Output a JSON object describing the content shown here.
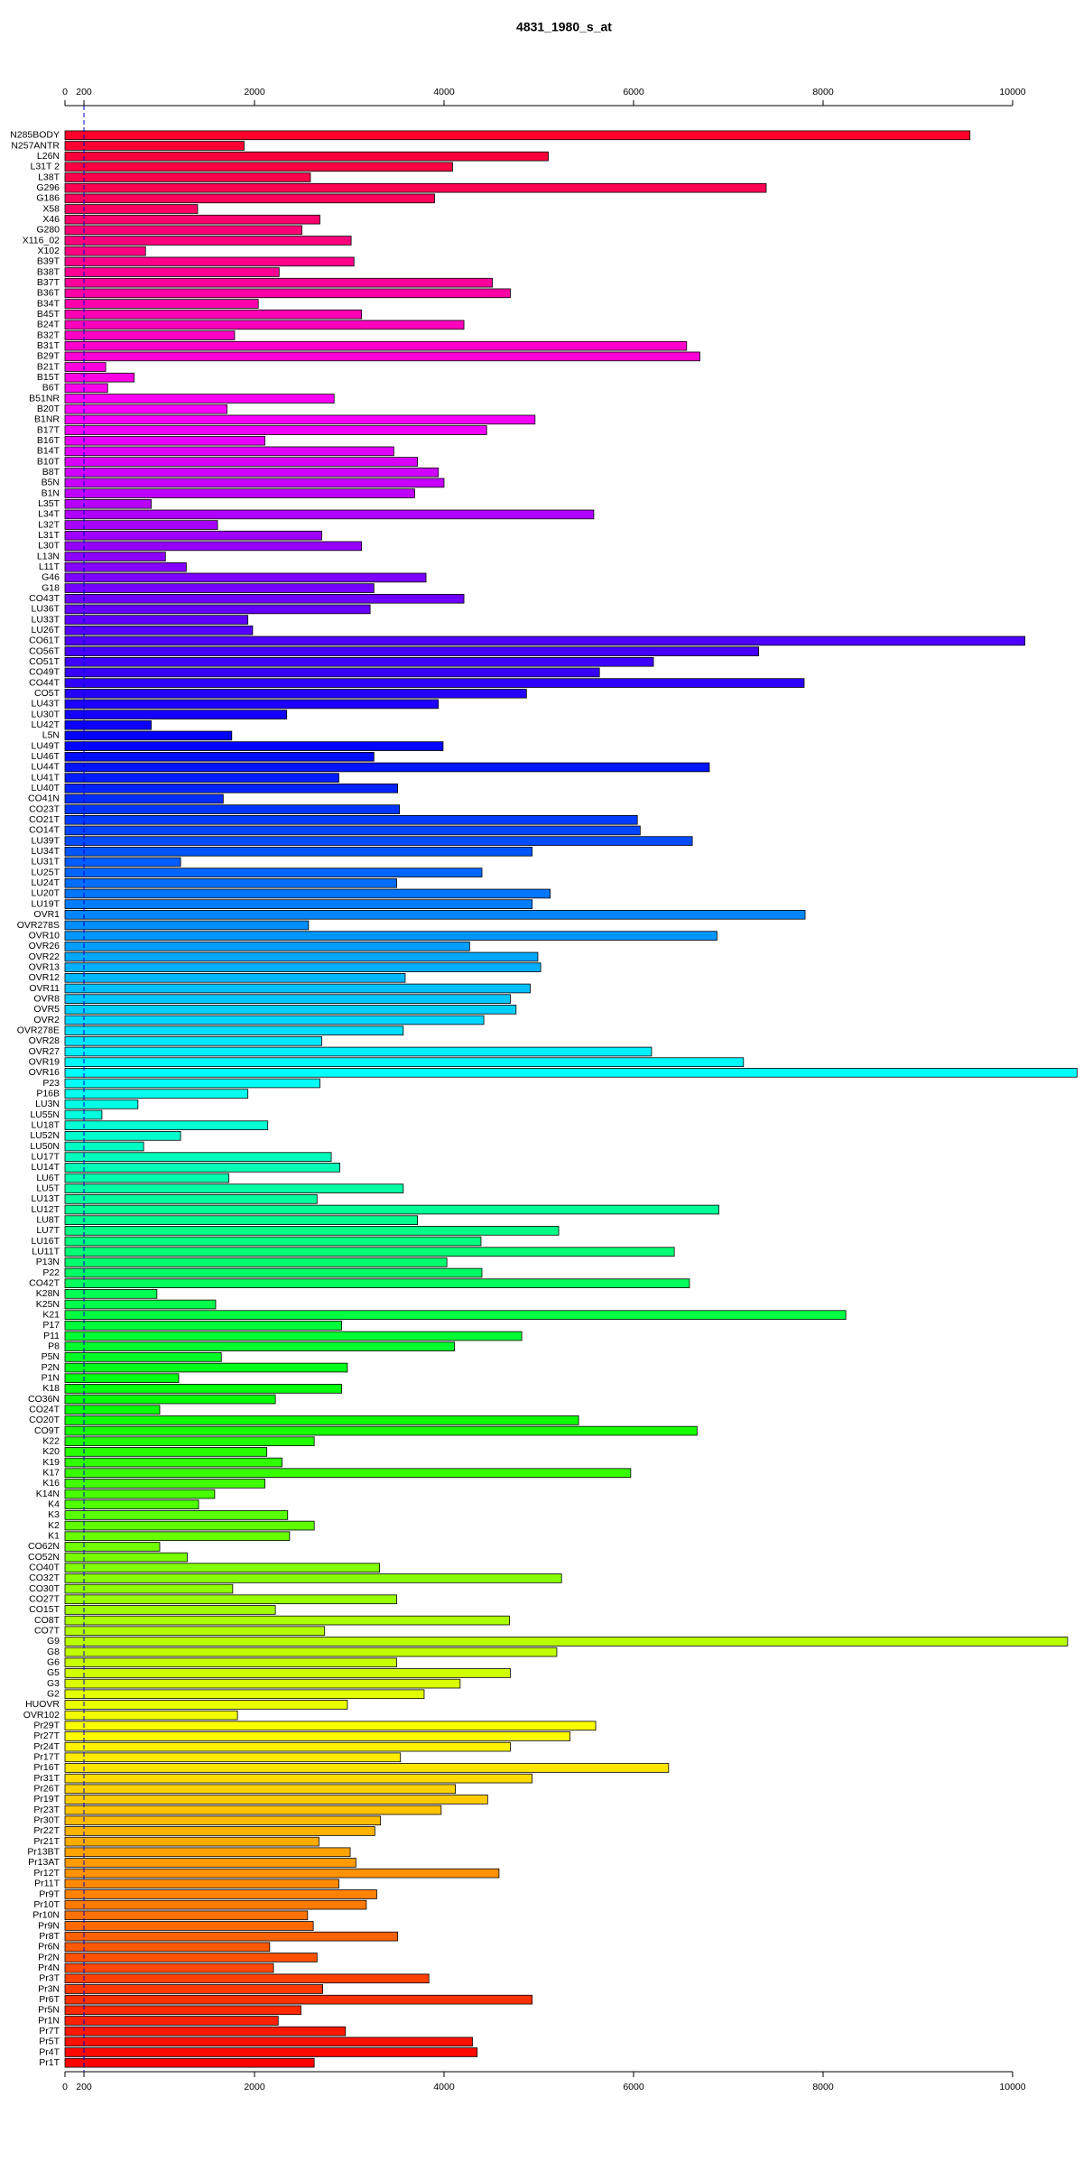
{
  "chart_data": {
    "type": "barh",
    "title": "4831_1980_s_at",
    "categories": [
      "N285BODY",
      "N257ANTR",
      "L26N",
      "L31T 2",
      "L38T",
      "G296",
      "G186",
      "X58",
      "X46",
      "G280",
      "X116_02",
      "X102",
      "B39T",
      "B38T",
      "B37T",
      "B36T",
      "B34T",
      "B45T",
      "B24T",
      "B32T",
      "B31T",
      "B29T",
      "B21T",
      "B15T",
      "B6T",
      "B51NR",
      "B20T",
      "B1NR",
      "B17T",
      "B16T",
      "B14T",
      "B10T",
      "B8T",
      "B5N",
      "B1N",
      "L35T",
      "L34T",
      "L32T",
      "L31T",
      "L30T",
      "L13N",
      "L11T",
      "G46",
      "G18",
      "CO43T",
      "LU36T",
      "LU33T",
      "LU26T",
      "CO61T",
      "CO56T",
      "CO51T",
      "CO49T",
      "CO44T",
      "CO5T",
      "LU43T",
      "LU30T",
      "LU42T",
      "L5N",
      "LU49T",
      "LU46T",
      "LU44T",
      "LU41T",
      "LU40T",
      "CO41N",
      "CO23T",
      "CO21T",
      "CO14T",
      "LU39T",
      "LU34T",
      "LU31T",
      "LU25T",
      "LU24T",
      "LU20T",
      "LU19T",
      "OVR1",
      "OVR278S",
      "OVR10",
      "OVR26",
      "OVR22",
      "OVR13",
      "OVR12",
      "OVR11",
      "OVR8",
      "OVR5",
      "OVR2",
      "OVR278E",
      "OVR28",
      "OVR27",
      "OVR19",
      "OVR16",
      "P23",
      "P16B",
      "LU3N",
      "LU55N",
      "LU18T",
      "LU52N",
      "LU50N",
      "LU17T",
      "LU14T",
      "LU6T",
      "LU5T",
      "LU13T",
      "LU12T",
      "LU8T",
      "LU7T",
      "LU16T",
      "LU11T",
      "P13N",
      "P22",
      "CO42T",
      "K28N",
      "K25N",
      "K21",
      "P17",
      "P11",
      "P8",
      "P5N",
      "P2N",
      "P1N",
      "K18",
      "CO36N",
      "CO24T",
      "CO20T",
      "CO9T",
      "K22",
      "K20",
      "K19",
      "K17",
      "K16",
      "K14N",
      "K4",
      "K3",
      "K2",
      "K1",
      "CO62N",
      "CO52N",
      "CO40T",
      "CO32T",
      "CO30T",
      "CO27T",
      "CO15T",
      "CO8T",
      "CO7T",
      "G9",
      "G8",
      "G6",
      "G5",
      "G3",
      "G2",
      "HUOVR",
      "OVR102",
      "Pr29T",
      "Pr27T",
      "Pr24T",
      "Pr17T",
      "Pr16T",
      "Pr31T",
      "Pr26T",
      "Pr19T",
      "Pr23T",
      "Pr30T",
      "Pr22T",
      "Pr21T",
      "Pr13BT",
      "Pr13AT",
      "Pr12T",
      "Pr11T",
      "Pr9T",
      "Pr10T",
      "Pr10N",
      "Pr9N",
      "Pr8T",
      "Pr6N",
      "Pr2N",
      "Pr4N",
      "Pr3T",
      "Pr3N",
      "Pr6T",
      "Pr5N",
      "Pr1N",
      "Pr7T",
      "Pr5T",
      "Pr4T",
      "Pr1T"
    ],
    "values": [
      9550,
      1890,
      5100,
      4090,
      2590,
      7400,
      3900,
      1400,
      2690,
      2500,
      3020,
      850,
      3050,
      2260,
      4510,
      4700,
      2040,
      3130,
      4210,
      1790,
      6560,
      6700,
      430,
      730,
      450,
      2840,
      1710,
      4960,
      4450,
      2110,
      3470,
      3720,
      3940,
      4000,
      3690,
      910,
      5580,
      1610,
      2710,
      3130,
      1060,
      1280,
      3810,
      3260,
      4210,
      3220,
      1930,
      1980,
      10130,
      7320,
      6210,
      5640,
      7800,
      4870,
      3940,
      2340,
      910,
      1760,
      3990,
      3260,
      6800,
      2890,
      3510,
      1670,
      3530,
      6040,
      6070,
      6620,
      4930,
      1220,
      4400,
      3500,
      5120,
      4930,
      7810,
      2570,
      6880,
      4270,
      4990,
      5020,
      3590,
      4910,
      4700,
      4760,
      4420,
      3570,
      2710,
      6190,
      7160,
      10680,
      2690,
      1930,
      770,
      390,
      2140,
      1220,
      830,
      2810,
      2900,
      1730,
      3570,
      2660,
      6900,
      3720,
      5210,
      4390,
      6430,
      4030,
      4400,
      6590,
      970,
      1590,
      8240,
      2920,
      4820,
      4110,
      1650,
      2980,
      1200,
      2920,
      2220,
      1000,
      5420,
      6670,
      2630,
      2130,
      2290,
      5970,
      2110,
      1580,
      1410,
      2350,
      2630,
      2370,
      1000,
      1290,
      3320,
      5240,
      1770,
      3500,
      2220,
      4690,
      2740,
      10580,
      5190,
      3500,
      4700,
      4170,
      3790,
      2980,
      1820,
      5600,
      5330,
      4700,
      3540,
      6370,
      4930,
      4120,
      4460,
      3970,
      3330,
      3270,
      2680,
      3010,
      3070,
      4580,
      2890,
      3290,
      3180,
      2560,
      2620,
      3510,
      2160,
      2660,
      2200,
      3840,
      2720,
      4930,
      2490,
      2250,
      2960,
      4300,
      4350,
      2630
    ],
    "colormap": "rainbow",
    "xlim": [
      0,
      10700
    ],
    "xticks": [
      0,
      200,
      2000,
      4000,
      6000,
      8000,
      10000
    ],
    "vline": 200,
    "vline_color": "#0000cc"
  }
}
